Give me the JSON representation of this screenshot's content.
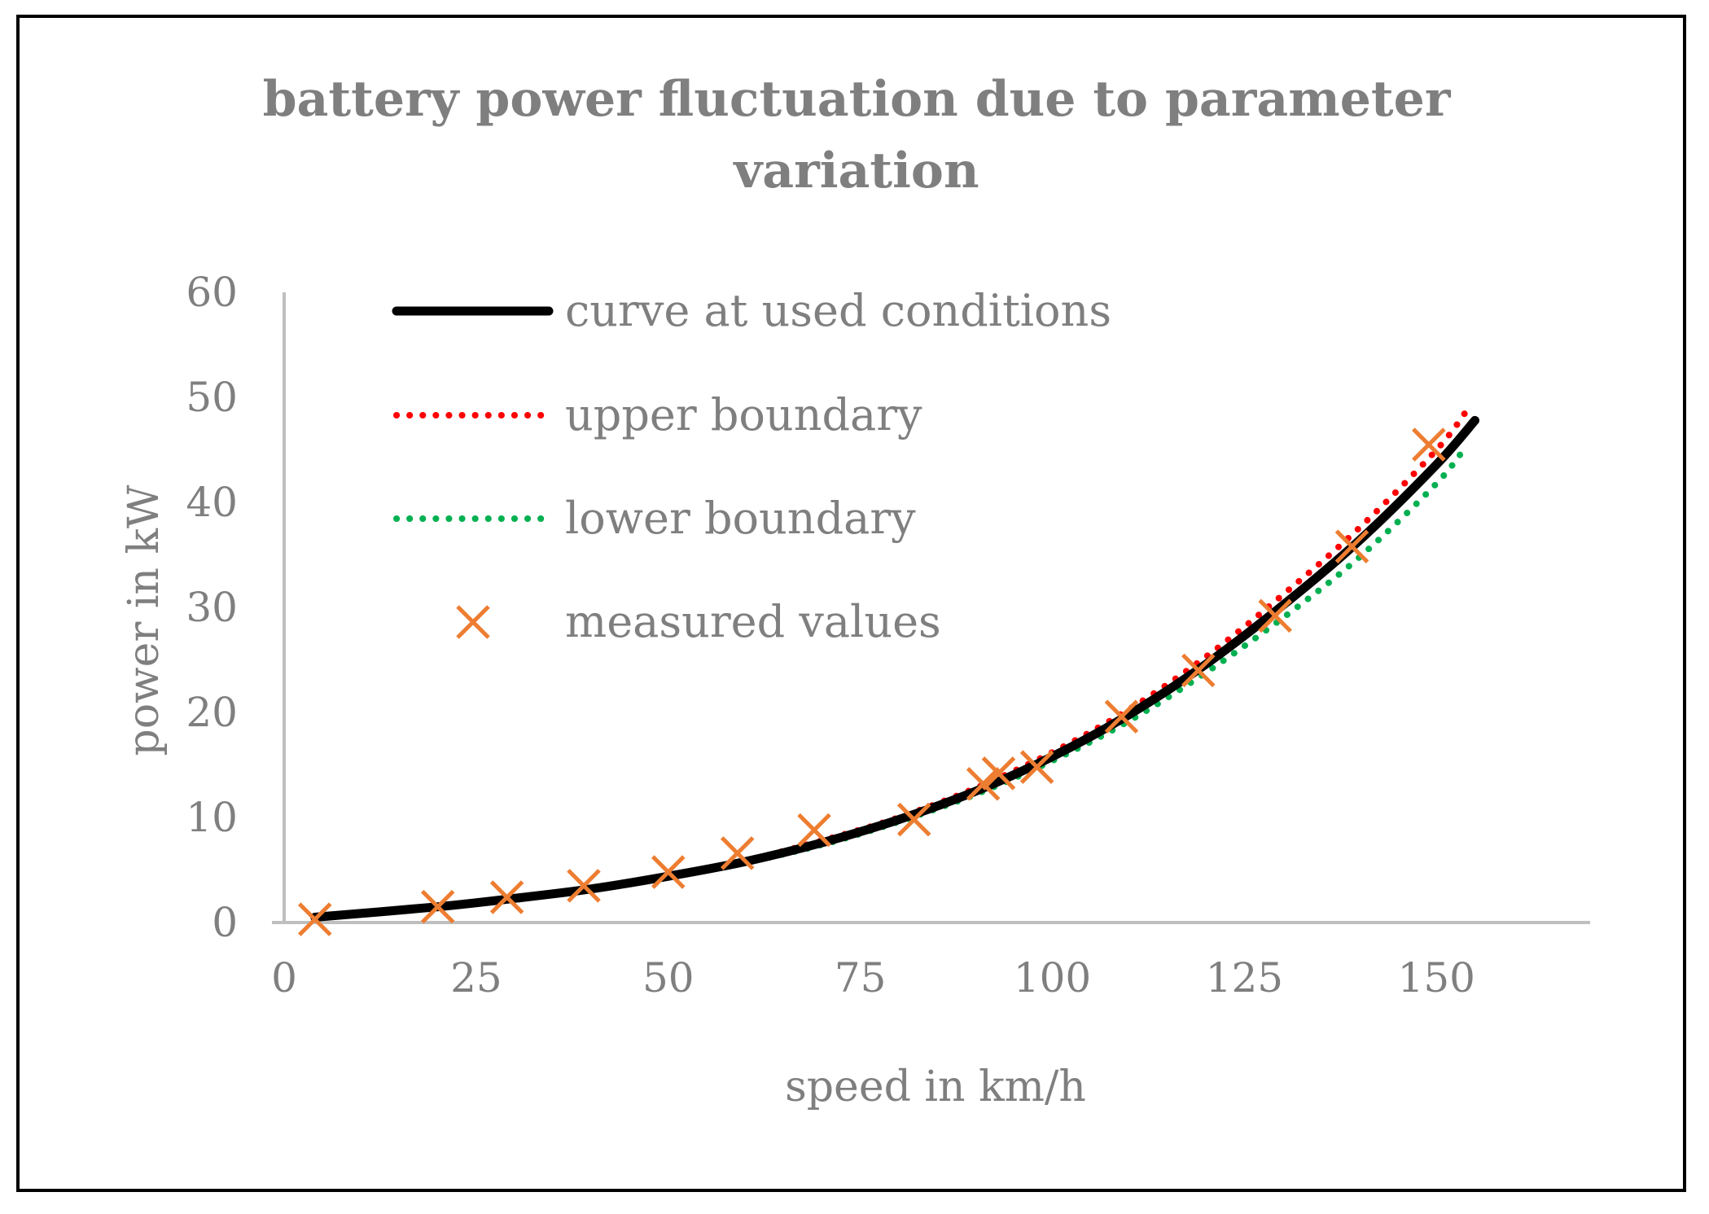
{
  "chart_data": {
    "type": "line",
    "title_line1": "battery power fluctuation due to parameter",
    "title_line2": "variation",
    "xlabel": "speed in km/h",
    "ylabel": "power in kW",
    "xlim": [
      0,
      170
    ],
    "ylim": [
      0,
      60
    ],
    "x_ticks": [
      "0",
      "25",
      "50",
      "75",
      "100",
      "125",
      "150"
    ],
    "y_ticks": [
      "0",
      "10",
      "20",
      "30",
      "40",
      "50",
      "60"
    ],
    "grid": false,
    "legend_position": "top-left",
    "series": [
      {
        "name": "curve at used conditions",
        "style": "solid",
        "color": "#000000",
        "x": [
          4,
          20,
          30,
          40,
          50,
          60,
          70,
          80,
          90,
          100,
          110,
          120,
          130,
          140,
          150,
          155
        ],
        "y": [
          0.5,
          1.5,
          2.3,
          3.2,
          4.4,
          5.8,
          7.6,
          9.8,
          12.5,
          15.8,
          19.8,
          24.6,
          30.2,
          36.4,
          43.6,
          47.8
        ]
      },
      {
        "name": "upper boundary",
        "style": "dotted",
        "color": "#ff0000",
        "x": [
          4,
          20,
          30,
          40,
          50,
          60,
          70,
          80,
          90,
          100,
          110,
          120,
          130,
          140,
          150,
          154
        ],
        "y": [
          0.5,
          1.5,
          2.3,
          3.3,
          4.5,
          5.9,
          7.8,
          10.0,
          12.8,
          16.2,
          20.3,
          25.3,
          31.2,
          37.6,
          45.0,
          48.8
        ]
      },
      {
        "name": "lower boundary",
        "style": "dotted",
        "color": "#00b050",
        "x": [
          4,
          20,
          30,
          40,
          50,
          60,
          70,
          80,
          90,
          100,
          110,
          120,
          130,
          140,
          150,
          154
        ],
        "y": [
          0.5,
          1.4,
          2.2,
          3.1,
          4.3,
          5.7,
          7.4,
          9.6,
          12.2,
          15.4,
          19.2,
          23.8,
          29.0,
          34.8,
          41.8,
          45.5
        ]
      },
      {
        "name": "measured values",
        "style": "marker-x",
        "color": "#ed7d31",
        "x": [
          4,
          20,
          29,
          39,
          50,
          59,
          69,
          82,
          91,
          93,
          98,
          109,
          119,
          129,
          139,
          149
        ],
        "y": [
          0.3,
          1.5,
          2.4,
          3.5,
          4.8,
          6.6,
          8.8,
          9.8,
          13.2,
          14.2,
          14.8,
          19.6,
          24.0,
          29.2,
          35.8,
          45.5
        ]
      }
    ]
  }
}
